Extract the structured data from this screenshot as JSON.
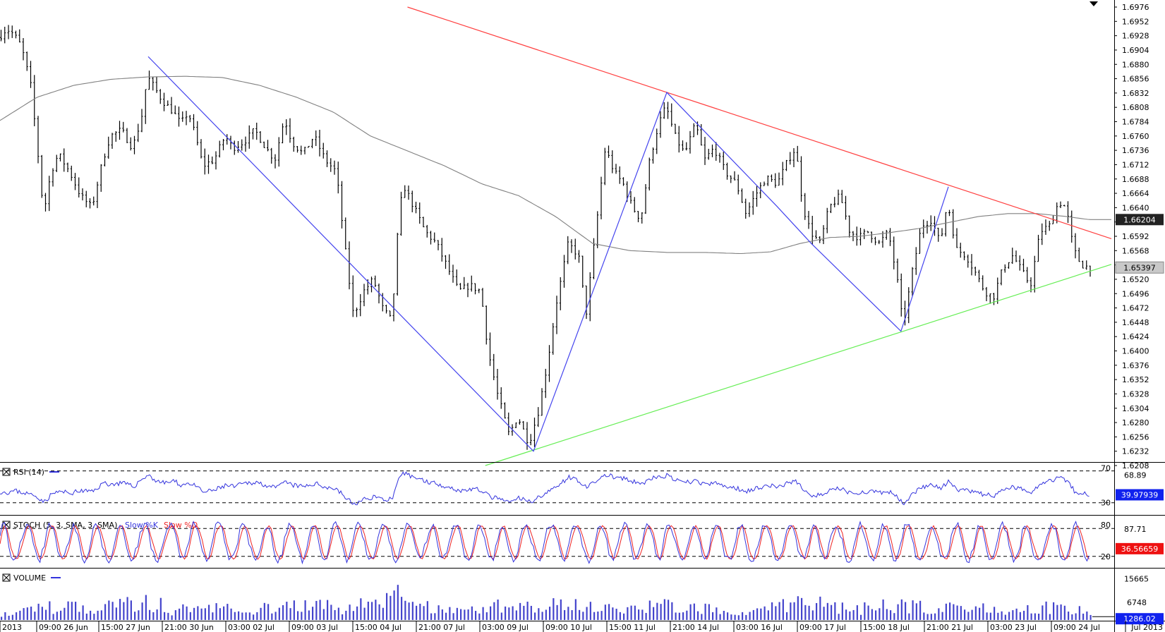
{
  "colors": {
    "bars": "#000000",
    "ma": "#808080",
    "resistance": "#ff4040",
    "support": "#66ee55",
    "wave": "#4444ee",
    "rsi": "#3333dd",
    "stoch_k": "#3333dd",
    "stoch_d": "#ee2222",
    "volume": "#4444cc",
    "badge_dark": "#222222",
    "badge_blue": "#1122ee",
    "badge_red": "#ee1111"
  },
  "chart_data": [
    {
      "type": "ohlc",
      "price_axis": {
        "ticks": [
          "1.6976",
          "1.6952",
          "1.6928",
          "1.6904",
          "1.6880",
          "1.6856",
          "1.6832",
          "1.6808",
          "1.6784",
          "1.6760",
          "1.6736",
          "1.6712",
          "1.6688",
          "1.6664",
          "1.6640",
          "1.6616",
          "1.6592",
          "1.6568",
          "1.6544",
          "1.6520",
          "1.6496",
          "1.6472",
          "1.6448",
          "1.6424",
          "1.6400",
          "1.6376",
          "1.6352",
          "1.6328",
          "1.6304",
          "1.6280",
          "1.6256",
          "1.6232",
          "1.6208"
        ],
        "min": 1.6208,
        "max": 1.6976
      },
      "time_axis": [
        "2013",
        "09:00 26 Jun",
        "15:00 27 Jun",
        "21:00 30 Jun",
        "03:00 02 Jul",
        "09:00 03 Jul",
        "15:00 04 Jul",
        "21:00 07 Jul",
        "03:00 09 Jul",
        "09:00 10 Jul",
        "15:00 11 Jul",
        "21:00 14 Jul",
        "03:00 16 Jul",
        "09:00 17 Jul",
        "15:00 18 Jul",
        "21:00 21 Jul",
        "03:00 23 Jul",
        "09:00 24 Jul",
        "Jul 2013"
      ],
      "price_path": [
        [
          0,
          1.6925
        ],
        [
          10,
          1.694
        ],
        [
          20,
          1.693
        ],
        [
          30,
          1.691
        ],
        [
          42,
          1.685
        ],
        [
          50,
          1.676
        ],
        [
          60,
          1.663
        ],
        [
          70,
          1.67
        ],
        [
          80,
          1.673
        ],
        [
          95,
          1.67
        ],
        [
          110,
          1.666
        ],
        [
          125,
          1.664
        ],
        [
          140,
          1.672
        ],
        [
          150,
          1.676
        ],
        [
          165,
          1.677
        ],
        [
          180,
          1.674
        ],
        [
          192,
          1.679
        ],
        [
          200,
          1.686
        ],
        [
          210,
          1.684
        ],
        [
          220,
          1.682
        ],
        [
          235,
          1.68
        ],
        [
          245,
          1.678
        ],
        [
          255,
          1.68
        ],
        [
          265,
          1.676
        ],
        [
          275,
          1.671
        ],
        [
          290,
          1.672
        ],
        [
          305,
          1.676
        ],
        [
          315,
          1.674
        ],
        [
          330,
          1.675
        ],
        [
          345,
          1.677
        ],
        [
          360,
          1.674
        ],
        [
          372,
          1.672
        ],
        [
          385,
          1.679
        ],
        [
          395,
          1.675
        ],
        [
          410,
          1.673
        ],
        [
          425,
          1.676
        ],
        [
          440,
          1.672
        ],
        [
          455,
          1.67
        ],
        [
          468,
          1.656
        ],
        [
          478,
          1.646
        ],
        [
          492,
          1.65
        ],
        [
          505,
          1.652
        ],
        [
          518,
          1.647
        ],
        [
          530,
          1.645
        ],
        [
          538,
          1.66
        ],
        [
          545,
          1.668
        ],
        [
          560,
          1.664
        ],
        [
          575,
          1.66
        ],
        [
          590,
          1.658
        ],
        [
          605,
          1.654
        ],
        [
          620,
          1.65
        ],
        [
          635,
          1.651
        ],
        [
          650,
          1.65
        ],
        [
          660,
          1.64
        ],
        [
          672,
          1.633
        ],
        [
          688,
          1.626
        ],
        [
          700,
          1.629
        ],
        [
          715,
          1.6245
        ],
        [
          728,
          1.63
        ],
        [
          740,
          1.638
        ],
        [
          752,
          1.648
        ],
        [
          768,
          1.658
        ],
        [
          782,
          1.656
        ],
        [
          792,
          1.646
        ],
        [
          805,
          1.66
        ],
        [
          818,
          1.674
        ],
        [
          830,
          1.67
        ],
        [
          842,
          1.668
        ],
        [
          855,
          1.664
        ],
        [
          866,
          1.662
        ],
        [
          878,
          1.672
        ],
        [
          890,
          1.678
        ],
        [
          900,
          1.681
        ],
        [
          912,
          1.676
        ],
        [
          925,
          1.673
        ],
        [
          940,
          1.678
        ],
        [
          952,
          1.672
        ],
        [
          965,
          1.674
        ],
        [
          980,
          1.67
        ],
        [
          995,
          1.668
        ],
        [
          1008,
          1.663
        ],
        [
          1020,
          1.666
        ],
        [
          1035,
          1.669
        ],
        [
          1050,
          1.668
        ],
        [
          1065,
          1.672
        ],
        [
          1075,
          1.674
        ],
        [
          1085,
          1.664
        ],
        [
          1095,
          1.66
        ],
        [
          1108,
          1.658
        ],
        [
          1120,
          1.664
        ],
        [
          1135,
          1.666
        ],
        [
          1148,
          1.66
        ],
        [
          1160,
          1.659
        ],
        [
          1172,
          1.66
        ],
        [
          1188,
          1.658
        ],
        [
          1200,
          1.66
        ],
        [
          1212,
          1.652
        ],
        [
          1220,
          1.644
        ],
        [
          1232,
          1.653
        ],
        [
          1245,
          1.661
        ],
        [
          1258,
          1.662
        ],
        [
          1270,
          1.658
        ],
        [
          1280,
          1.665
        ],
        [
          1292,
          1.657
        ],
        [
          1305,
          1.656
        ],
        [
          1318,
          1.653
        ],
        [
          1330,
          1.65
        ],
        [
          1342,
          1.649
        ],
        [
          1355,
          1.654
        ],
        [
          1368,
          1.656
        ],
        [
          1382,
          1.653
        ],
        [
          1392,
          1.651
        ],
        [
          1405,
          1.66
        ],
        [
          1418,
          1.661
        ],
        [
          1430,
          1.665
        ],
        [
          1440,
          1.664
        ],
        [
          1450,
          1.657
        ],
        [
          1460,
          1.6545
        ],
        [
          1470,
          1.654
        ]
      ],
      "moving_average": {
        "value_label": "1.66204",
        "points": [
          [
            0,
            1.6786
          ],
          [
            50,
            1.6825
          ],
          [
            100,
            1.6845
          ],
          [
            150,
            1.6855
          ],
          [
            200,
            1.6859
          ],
          [
            250,
            1.686
          ],
          [
            300,
            1.6858
          ],
          [
            350,
            1.6845
          ],
          [
            400,
            1.6825
          ],
          [
            450,
            1.68
          ],
          [
            500,
            1.676
          ],
          [
            550,
            1.6735
          ],
          [
            600,
            1.671
          ],
          [
            650,
            1.668
          ],
          [
            700,
            1.666
          ],
          [
            750,
            1.6625
          ],
          [
            800,
            1.658
          ],
          [
            850,
            1.6568
          ],
          [
            900,
            1.6565
          ],
          [
            950,
            1.6565
          ],
          [
            1000,
            1.6563
          ],
          [
            1040,
            1.6566
          ],
          [
            1080,
            1.658
          ],
          [
            1120,
            1.659
          ],
          [
            1160,
            1.6592
          ],
          [
            1200,
            1.6598
          ],
          [
            1240,
            1.6605
          ],
          [
            1280,
            1.6615
          ],
          [
            1320,
            1.6625
          ],
          [
            1360,
            1.663
          ],
          [
            1400,
            1.663
          ],
          [
            1440,
            1.6625
          ],
          [
            1470,
            1.662
          ],
          [
            1500,
            1.662
          ]
        ]
      },
      "resistance_line": [
        [
          550,
          1.6976
        ],
        [
          1500,
          1.6588
        ]
      ],
      "support_line": [
        [
          655,
          1.6208
        ],
        [
          1500,
          1.6545
        ]
      ],
      "wave_lines": [
        [
          [
            200,
            1.6893
          ],
          [
            720,
            1.6232
          ],
          [
            900,
            1.6833
          ],
          [
            1048,
            1.6643
          ],
          [
            1095,
            1.658
          ],
          [
            1216,
            1.6433
          ],
          [
            1280,
            1.6675
          ]
        ]
      ],
      "current_price_label": "1.65397"
    },
    {
      "type": "line",
      "name": "RSI (14)",
      "levels": [
        "70",
        "30"
      ],
      "level_values": [
        70,
        30
      ],
      "range": [
        20,
        75
      ],
      "value_labels": [
        "68.89",
        "39.97939"
      ],
      "series_points": [
        [
          0,
          44
        ],
        [
          10,
          43
        ],
        [
          20,
          45
        ],
        [
          35,
          42
        ],
        [
          50,
          38
        ],
        [
          60,
          31
        ],
        [
          70,
          41
        ],
        [
          80,
          44
        ],
        [
          95,
          42
        ],
        [
          110,
          45
        ],
        [
          125,
          44
        ],
        [
          140,
          55
        ],
        [
          150,
          53
        ],
        [
          165,
          55
        ],
        [
          180,
          50
        ],
        [
          192,
          60
        ],
        [
          200,
          65
        ],
        [
          210,
          58
        ],
        [
          220,
          55
        ],
        [
          235,
          57
        ],
        [
          245,
          52
        ],
        [
          255,
          55
        ],
        [
          265,
          50
        ],
        [
          275,
          43
        ],
        [
          290,
          46
        ],
        [
          305,
          52
        ],
        [
          315,
          50
        ],
        [
          330,
          54
        ],
        [
          345,
          56
        ],
        [
          360,
          52
        ],
        [
          372,
          48
        ],
        [
          385,
          56
        ],
        [
          395,
          52
        ],
        [
          410,
          50
        ],
        [
          425,
          54
        ],
        [
          440,
          50
        ],
        [
          455,
          47
        ],
        [
          468,
          35
        ],
        [
          478,
          28
        ],
        [
          492,
          34
        ],
        [
          505,
          38
        ],
        [
          518,
          34
        ],
        [
          530,
          35
        ],
        [
          538,
          58
        ],
        [
          545,
          67
        ],
        [
          560,
          62
        ],
        [
          575,
          57
        ],
        [
          590,
          54
        ],
        [
          605,
          50
        ],
        [
          620,
          45
        ],
        [
          635,
          47
        ],
        [
          650,
          46
        ],
        [
          660,
          38
        ],
        [
          672,
          35
        ],
        [
          688,
          30
        ],
        [
          700,
          36
        ],
        [
          715,
          31
        ],
        [
          728,
          38
        ],
        [
          740,
          43
        ],
        [
          752,
          52
        ],
        [
          768,
          62
        ],
        [
          782,
          58
        ],
        [
          792,
          48
        ],
        [
          805,
          58
        ],
        [
          818,
          65
        ],
        [
          830,
          62
        ],
        [
          842,
          60
        ],
        [
          855,
          56
        ],
        [
          866,
          54
        ],
        [
          878,
          60
        ],
        [
          890,
          62
        ],
        [
          900,
          64
        ],
        [
          912,
          58
        ],
        [
          925,
          55
        ],
        [
          940,
          58
        ],
        [
          952,
          52
        ],
        [
          965,
          55
        ],
        [
          980,
          50
        ],
        [
          995,
          48
        ],
        [
          1008,
          45
        ],
        [
          1020,
          48
        ],
        [
          1035,
          52
        ],
        [
          1050,
          50
        ],
        [
          1065,
          55
        ],
        [
          1075,
          57
        ],
        [
          1085,
          45
        ],
        [
          1095,
          40
        ],
        [
          1108,
          39
        ],
        [
          1120,
          45
        ],
        [
          1135,
          48
        ],
        [
          1148,
          42
        ],
        [
          1160,
          43
        ],
        [
          1172,
          44
        ],
        [
          1188,
          42
        ],
        [
          1200,
          44
        ],
        [
          1212,
          36
        ],
        [
          1220,
          30
        ],
        [
          1232,
          42
        ],
        [
          1245,
          50
        ],
        [
          1258,
          52
        ],
        [
          1270,
          48
        ],
        [
          1280,
          56
        ],
        [
          1292,
          46
        ],
        [
          1305,
          45
        ],
        [
          1318,
          42
        ],
        [
          1330,
          40
        ],
        [
          1342,
          39
        ],
        [
          1355,
          46
        ],
        [
          1368,
          50
        ],
        [
          1382,
          46
        ],
        [
          1392,
          44
        ],
        [
          1405,
          55
        ],
        [
          1418,
          58
        ],
        [
          1430,
          62
        ],
        [
          1440,
          58
        ],
        [
          1450,
          45
        ],
        [
          1460,
          42
        ],
        [
          1470,
          40
        ]
      ]
    },
    {
      "type": "line",
      "name": "STOCH (5, 3, SMA, 3, SMA)",
      "legend": [
        "Slow %K",
        "Slow %D"
      ],
      "levels": [
        "80",
        "20"
      ],
      "level_values": [
        80,
        20
      ],
      "range": [
        0,
        100
      ],
      "value_labels": [
        "87.71",
        "36.56659"
      ],
      "cycle_points": 46
    },
    {
      "type": "bar",
      "name": "VOLUME",
      "value_labels": [
        "15665",
        "6748",
        "1286.02"
      ],
      "label_values": [
        15665,
        6748
      ],
      "range": [
        0,
        19000
      ],
      "profile": [
        [
          0,
          3500
        ],
        [
          50,
          5500
        ],
        [
          100,
          6500
        ],
        [
          150,
          6000
        ],
        [
          200,
          9000
        ],
        [
          230,
          5000
        ],
        [
          300,
          6000
        ],
        [
          350,
          5500
        ],
        [
          400,
          6500
        ],
        [
          470,
          6000
        ],
        [
          500,
          7500
        ],
        [
          538,
          12000
        ],
        [
          560,
          6000
        ],
        [
          620,
          5000
        ],
        [
          660,
          6000
        ],
        [
          700,
          7000
        ],
        [
          750,
          7500
        ],
        [
          800,
          6500
        ],
        [
          850,
          7000
        ],
        [
          900,
          6500
        ],
        [
          950,
          5500
        ],
        [
          1000,
          5000
        ],
        [
          1050,
          6000
        ],
        [
          1085,
          9500
        ],
        [
          1120,
          6000
        ],
        [
          1160,
          5500
        ],
        [
          1200,
          6500
        ],
        [
          1250,
          6000
        ],
        [
          1300,
          5500
        ],
        [
          1350,
          5500
        ],
        [
          1400,
          6000
        ],
        [
          1440,
          5500
        ],
        [
          1470,
          3000
        ]
      ]
    }
  ]
}
